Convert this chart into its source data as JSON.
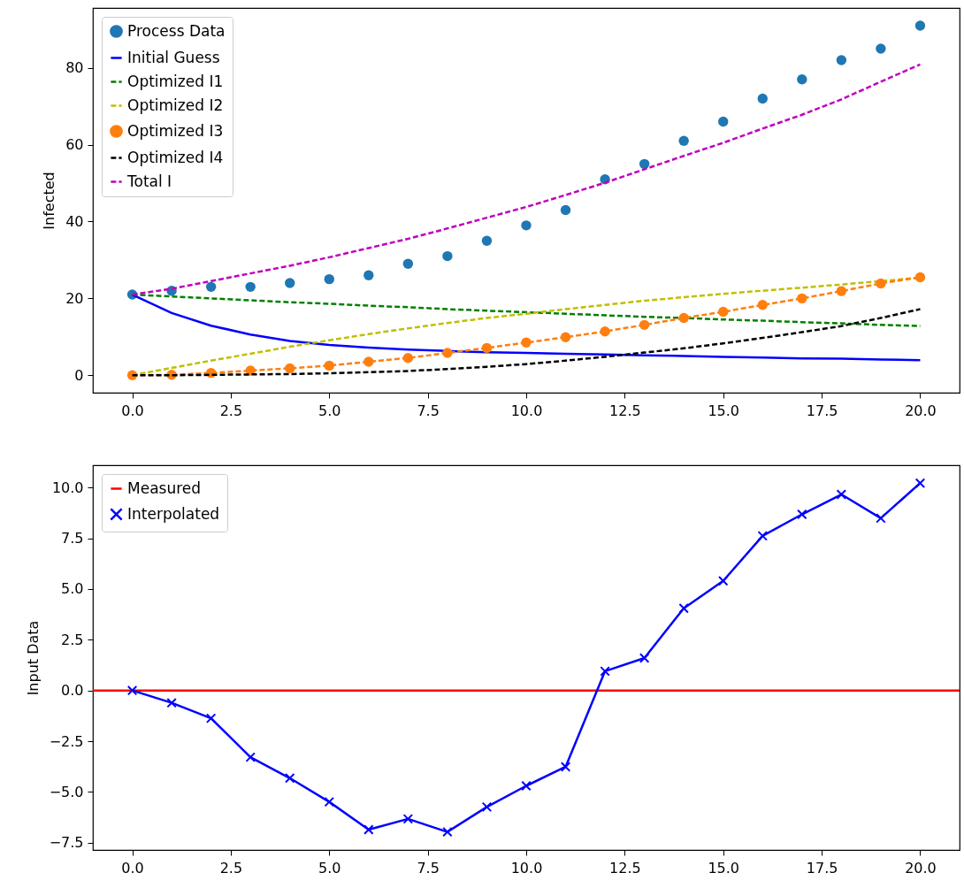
{
  "chart_data": [
    {
      "type": "line",
      "ylabel": "Infected",
      "xlim": [
        -1,
        21
      ],
      "ylim": [
        -4.55,
        95.6
      ],
      "xticks": [
        {
          "value": 0,
          "label": "0.0"
        },
        2.5,
        {
          "value": 5,
          "label": "5.0"
        },
        7.5,
        {
          "value": 10,
          "label": "10.0"
        },
        12.5,
        {
          "value": 15,
          "label": "15.0"
        },
        17.5,
        {
          "value": 20,
          "label": "20.0"
        }
      ],
      "yticks": [
        0,
        20,
        40,
        60,
        80
      ],
      "grid": false,
      "legend": "top left",
      "x": [
        0,
        1,
        2,
        3,
        4,
        5,
        6,
        7,
        8,
        9,
        10,
        11,
        12,
        13,
        14,
        15,
        16,
        17,
        18,
        19,
        20
      ],
      "series": [
        {
          "name": "Process Data",
          "type": "scatter",
          "marker": "circle",
          "color": "#1f77b4",
          "values": [
            21,
            22,
            23,
            23,
            24,
            25,
            26,
            29,
            31,
            35,
            39,
            43,
            51,
            55,
            61,
            66,
            72,
            77,
            82,
            85,
            91
          ]
        },
        {
          "name": "Initial Guess",
          "type": "line",
          "line_style": "solid",
          "color": "#0000ff",
          "values": [
            21,
            16.2,
            12.9,
            10.6,
            8.9,
            7.9,
            7.2,
            6.7,
            6.3,
            6.0,
            5.8,
            5.6,
            5.4,
            5.2,
            5.0,
            4.8,
            4.6,
            4.4,
            4.3,
            4.1,
            3.9
          ]
        },
        {
          "name": "Optimized I1",
          "type": "line",
          "line_style": "dashed",
          "color": "#008000",
          "values": [
            21,
            20.5,
            20.0,
            19.5,
            19.0,
            18.6,
            18.1,
            17.7,
            17.2,
            16.8,
            16.4,
            16.0,
            15.6,
            15.2,
            14.9,
            14.5,
            14.2,
            13.8,
            13.5,
            13.1,
            12.8
          ]
        },
        {
          "name": "Optimized I2",
          "type": "line",
          "line_style": "dashed",
          "color": "#bfbf00",
          "values": [
            0,
            1.9,
            3.8,
            5.6,
            7.4,
            9.1,
            10.7,
            12.2,
            13.6,
            14.9,
            16.0,
            17.2,
            18.3,
            19.4,
            20.3,
            21.2,
            22.0,
            22.8,
            23.6,
            24.5,
            25.4
          ]
        },
        {
          "name": "Optimized I3",
          "type": "line",
          "line_style": "dashed",
          "marker": "circle",
          "color": "#ff7f0e",
          "values": [
            0,
            0.1,
            0.6,
            1.2,
            1.8,
            2.5,
            3.5,
            4.5,
            5.8,
            7.1,
            8.5,
            9.9,
            11.4,
            13.1,
            14.9,
            16.5,
            18.3,
            20.0,
            21.9,
            23.9,
            25.5
          ]
        },
        {
          "name": "Optimized I4",
          "type": "line",
          "line_style": "dashed",
          "color": "#000000",
          "values": [
            0,
            0,
            0.1,
            0.2,
            0.3,
            0.5,
            0.8,
            1.1,
            1.6,
            2.2,
            2.9,
            3.8,
            4.8,
            5.9,
            7.0,
            8.3,
            9.7,
            11.2,
            12.8,
            14.9,
            17.2
          ]
        },
        {
          "name": "Total I",
          "type": "line",
          "line_style": "dashed",
          "color": "#bf00bf",
          "values": [
            21.0,
            22.5,
            24.5,
            26.5,
            28.5,
            30.7,
            33.1,
            35.5,
            38.2,
            41.0,
            43.8,
            46.9,
            50.1,
            53.6,
            57.1,
            60.5,
            64.2,
            67.8,
            71.8,
            76.4,
            80.9
          ]
        }
      ]
    },
    {
      "type": "line",
      "ylabel": "Input Data",
      "xlim": [
        -1,
        21
      ],
      "ylim": [
        -7.86,
        11.1
      ],
      "xticks": [
        {
          "value": 0,
          "label": "0.0"
        },
        2.5,
        {
          "value": 5,
          "label": "5.0"
        },
        7.5,
        {
          "value": 10,
          "label": "10.0"
        },
        12.5,
        {
          "value": 15,
          "label": "15.0"
        },
        17.5,
        {
          "value": 20,
          "label": "20.0"
        }
      ],
      "yticks": [
        {
          "value": -7.5,
          "label": "−7.5"
        },
        {
          "value": -5,
          "label": "−5.0"
        },
        {
          "value": -2.5,
          "label": "−2.5"
        },
        {
          "value": 0,
          "label": "0.0"
        },
        2.5,
        {
          "value": 5,
          "label": "5.0"
        },
        7.5,
        {
          "value": 10,
          "label": "10.0"
        }
      ],
      "grid": false,
      "legend": "top left",
      "x": [
        0,
        1,
        2,
        3,
        4,
        5,
        6,
        7,
        8,
        9,
        10,
        11,
        12,
        13,
        14,
        15,
        16,
        17,
        18,
        19,
        20
      ],
      "series": [
        {
          "name": "Measured",
          "type": "line",
          "line_style": "solid",
          "color": "#ff0000",
          "x": [
            -1,
            21
          ],
          "values": [
            0,
            0
          ]
        },
        {
          "name": "Interpolated",
          "type": "line",
          "line_style": "solid",
          "marker": "cross",
          "color": "#0000ff",
          "values": [
            0,
            -0.61,
            -1.37,
            -3.29,
            -4.32,
            -5.49,
            -6.86,
            -6.33,
            -6.97,
            -5.74,
            -4.7,
            -3.76,
            0.95,
            1.6,
            4.05,
            5.4,
            7.62,
            8.68,
            9.66,
            8.49,
            10.22
          ]
        }
      ]
    }
  ]
}
